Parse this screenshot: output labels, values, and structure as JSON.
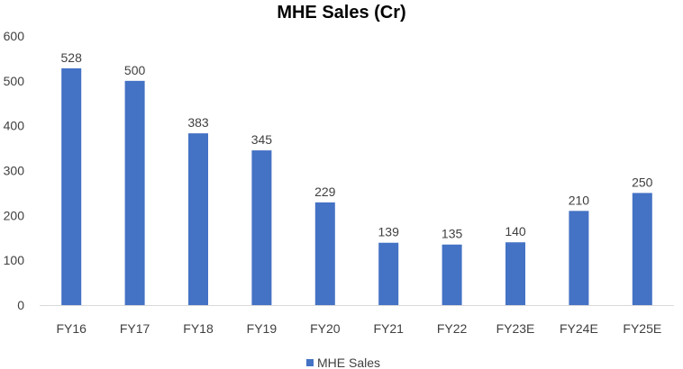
{
  "chart_data": {
    "type": "bar",
    "title": "MHE Sales (Cr)",
    "xlabel": "",
    "ylabel": "",
    "categories": [
      "FY16",
      "FY17",
      "FY18",
      "FY19",
      "FY20",
      "FY21",
      "FY22",
      "FY23E",
      "FY24E",
      "FY25E"
    ],
    "series": [
      {
        "name": "MHE Sales",
        "values": [
          528,
          500,
          383,
          345,
          229,
          139,
          135,
          140,
          210,
          250
        ],
        "color": "#4472C4"
      }
    ],
    "ylim": [
      0,
      600
    ],
    "yticks": [
      0,
      100,
      200,
      300,
      400,
      500,
      600
    ],
    "grid": false,
    "data_labels": true,
    "legend_position": "bottom"
  }
}
